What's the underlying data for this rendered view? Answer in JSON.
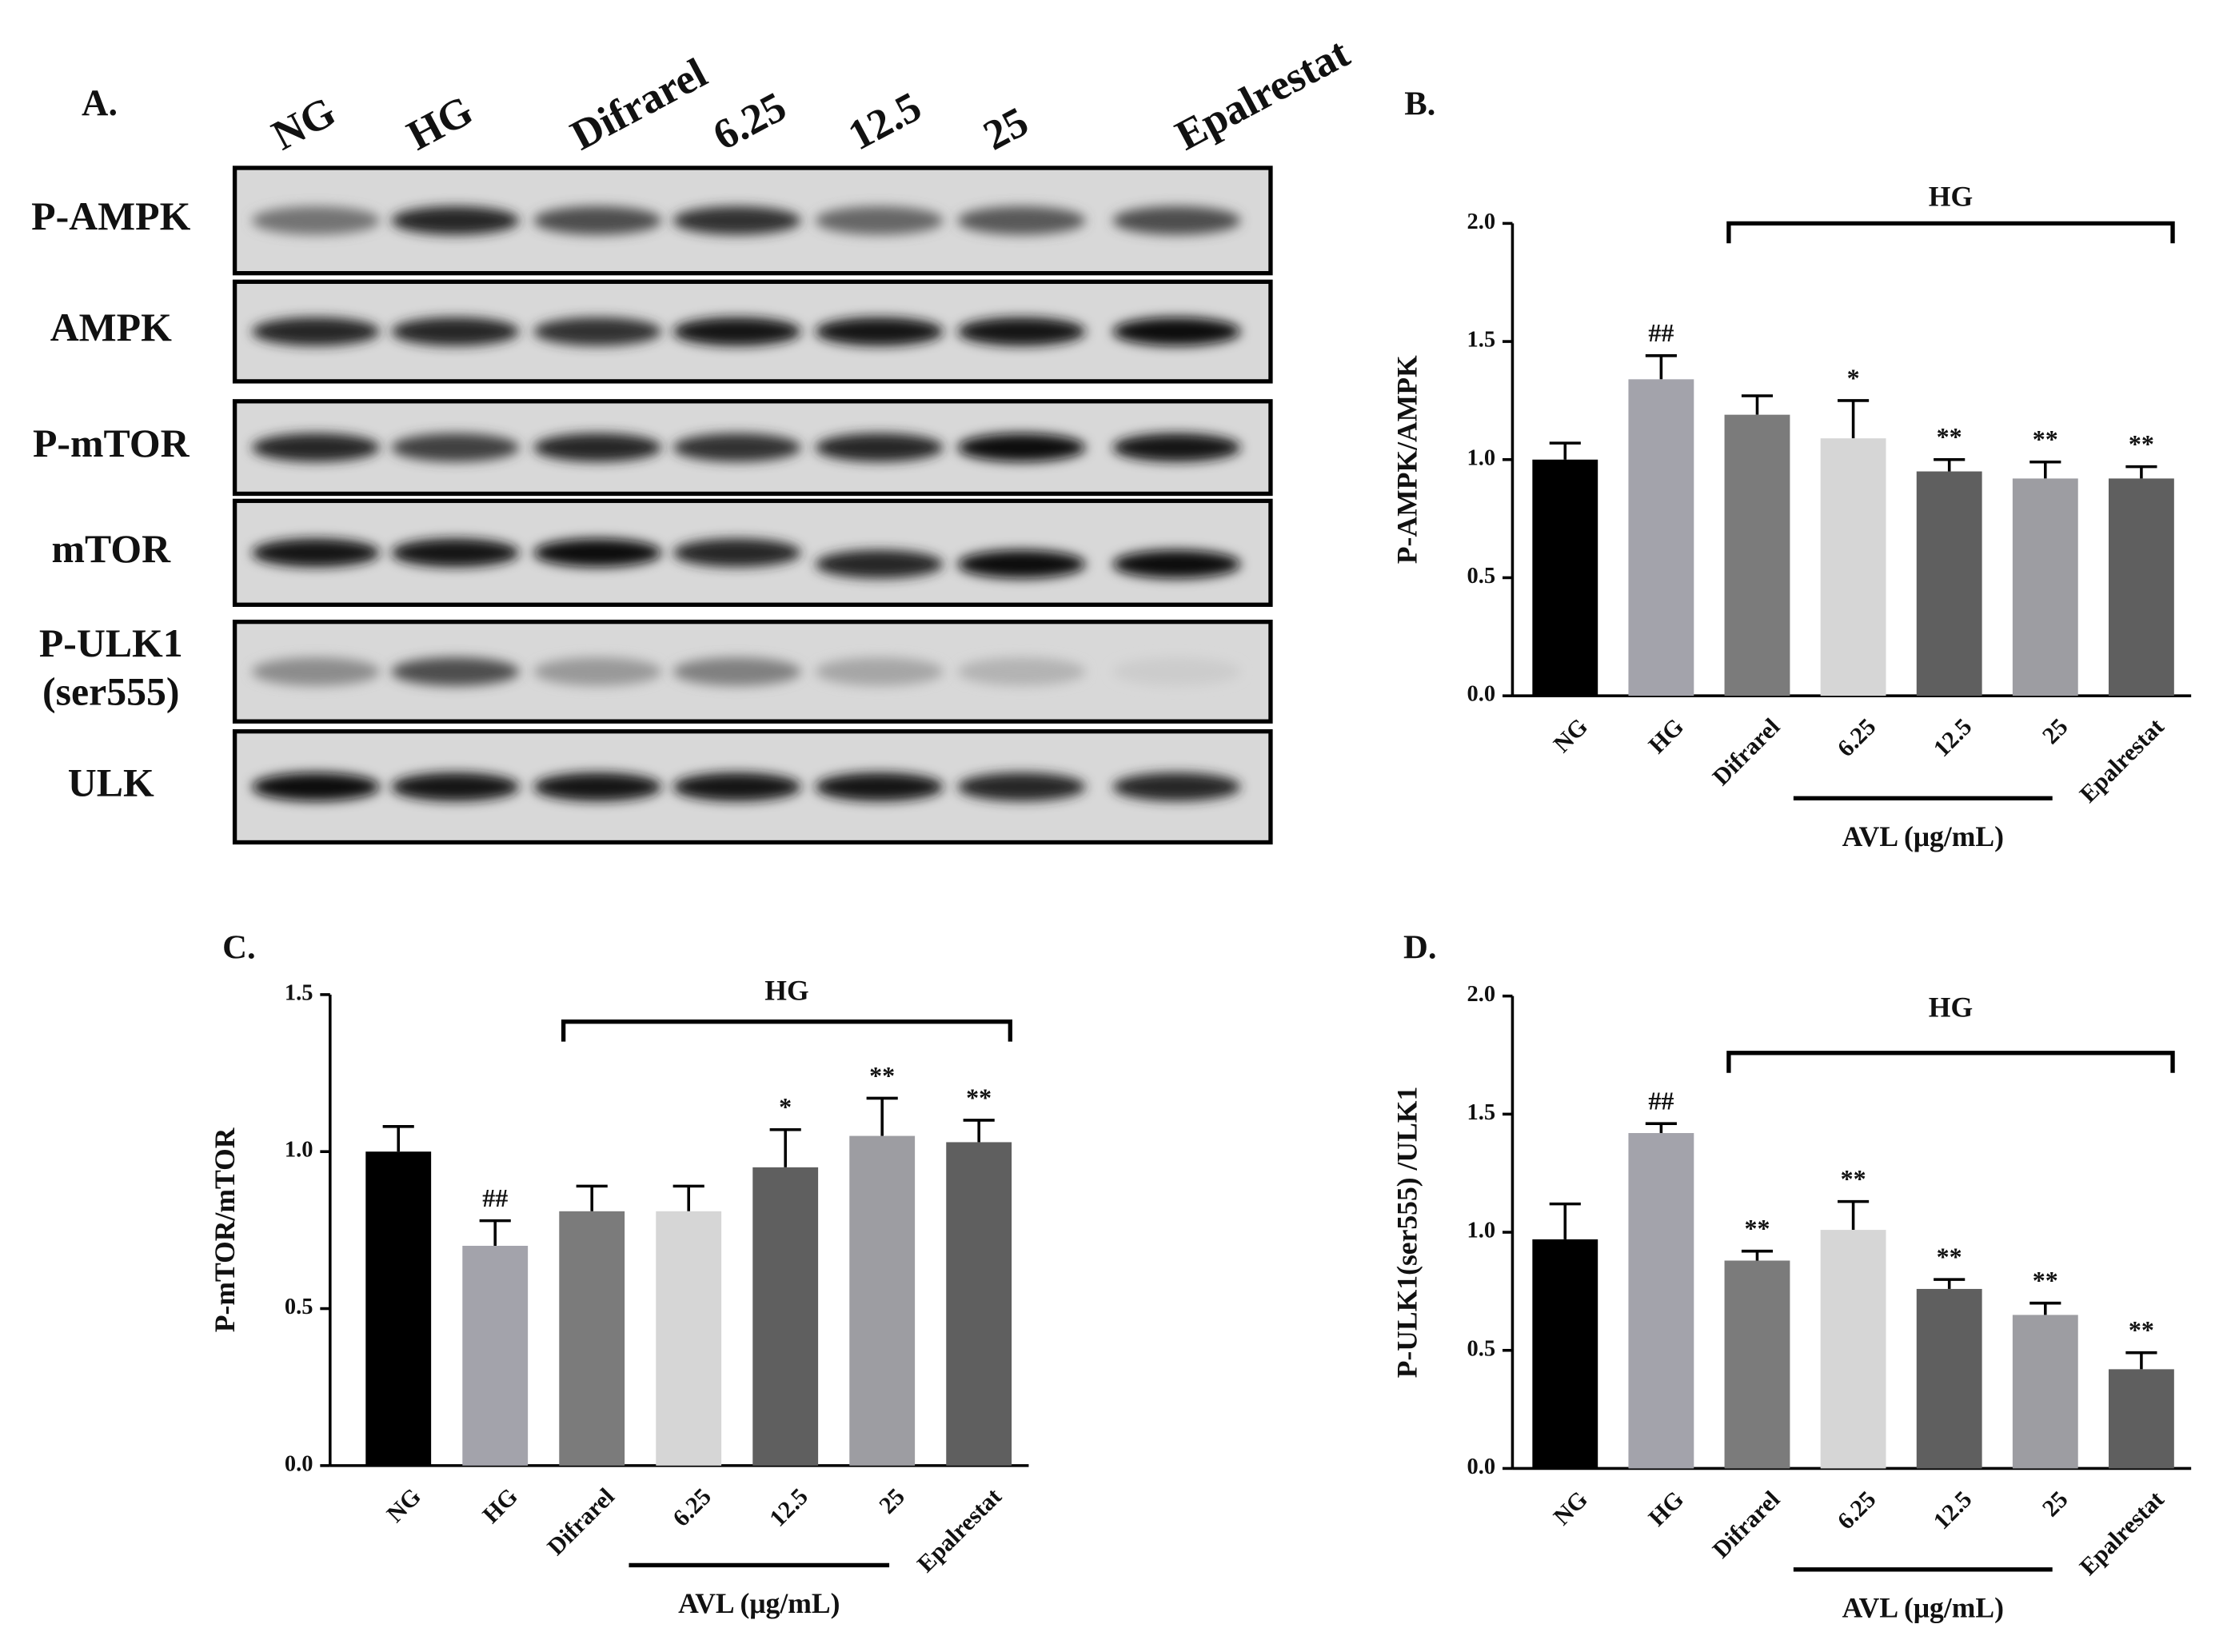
{
  "blot": {
    "panel": "A.",
    "lanes": [
      "NG",
      "HG",
      "Difrarel",
      "6.25",
      "12.5",
      "25",
      "Epalrestat"
    ],
    "rows": [
      [
        "P-AMPK"
      ],
      [
        "AMPK"
      ],
      [
        "P-mTOR"
      ],
      [
        "mTOR"
      ],
      [
        "P-ULK1",
        "(ser555)"
      ],
      [
        "ULK"
      ]
    ]
  },
  "chart_data": [
    {
      "type": "bar",
      "panel": "B.",
      "y_label": "P-AMPK/AMPK",
      "bracket_label": "HG",
      "group_label": "AVL (μg/mL)",
      "categories": [
        "NG",
        "HG",
        "Difrarel",
        "6.25",
        "12.5",
        "25",
        "Epalrestat"
      ],
      "values": [
        1.0,
        1.34,
        1.19,
        1.09,
        0.95,
        0.92,
        0.92
      ],
      "errors": [
        0.07,
        0.1,
        0.08,
        0.16,
        0.05,
        0.07,
        0.05
      ],
      "annotations": [
        null,
        "##",
        null,
        "*",
        "**",
        "**",
        "**"
      ],
      "colors": [
        "#000000",
        "#a3a3ab",
        "#7b7b7b",
        "#d6d6d6",
        "#5f5f5f",
        "#9d9da2",
        "#5f5f5f"
      ],
      "ylim": [
        0,
        2
      ],
      "yticks": [
        {
          "value": 0,
          "label": "0.0"
        },
        {
          "value": 0.5,
          "label": "0.5"
        },
        {
          "value": 1,
          "label": "1.0"
        },
        {
          "value": 1.5,
          "label": "1.5"
        },
        {
          "value": 2,
          "label": "2.0"
        }
      ]
    },
    {
      "type": "bar",
      "panel": "C.",
      "y_label": "P-mTOR/mTOR",
      "bracket_label": "HG",
      "group_label": "AVL (μg/mL)",
      "categories": [
        "NG",
        "HG",
        "Difrarel",
        "6.25",
        "12.5",
        "25",
        "Epalrestat"
      ],
      "values": [
        1.0,
        0.7,
        0.81,
        0.81,
        0.95,
        1.05,
        1.03
      ],
      "errors": [
        0.08,
        0.08,
        0.08,
        0.08,
        0.12,
        0.12,
        0.07
      ],
      "annotations": [
        null,
        "##",
        null,
        null,
        "*",
        "**",
        "**"
      ],
      "colors": [
        "#000000",
        "#a3a3ab",
        "#7b7b7b",
        "#d6d6d6",
        "#5f5f5f",
        "#9d9da2",
        "#5f5f5f"
      ],
      "ylim": [
        0,
        1.5
      ],
      "yticks": [
        {
          "value": 0,
          "label": "0.0"
        },
        {
          "value": 0.5,
          "label": "0.5"
        },
        {
          "value": 1,
          "label": "1.0"
        },
        1.5
      ]
    },
    {
      "type": "bar",
      "panel": "D.",
      "y_label": "P-ULK1(ser555) /ULK1",
      "bracket_label": "HG",
      "group_label": "AVL (μg/mL)",
      "categories": [
        "NG",
        "HG",
        "Difrarel",
        "6.25",
        "12.5",
        "25",
        "Epalrestat"
      ],
      "values": [
        0.97,
        1.42,
        0.88,
        1.01,
        0.76,
        0.65,
        0.42
      ],
      "errors": [
        0.15,
        0.04,
        0.04,
        0.12,
        0.04,
        0.05,
        0.07
      ],
      "annotations": [
        null,
        "##",
        "**",
        "**",
        "**",
        "**",
        "**"
      ],
      "colors": [
        "#000000",
        "#a3a3ab",
        "#7b7b7b",
        "#d6d6d6",
        "#5f5f5f",
        "#9d9da2",
        "#5f5f5f"
      ],
      "ylim": [
        0,
        2
      ],
      "yticks": [
        {
          "value": 0,
          "label": "0.0"
        },
        {
          "value": 0.5,
          "label": "0.5"
        },
        {
          "value": 1,
          "label": "1.0"
        },
        {
          "value": 1.5,
          "label": "1.5"
        },
        {
          "value": 2,
          "label": "2.0"
        }
      ]
    }
  ]
}
